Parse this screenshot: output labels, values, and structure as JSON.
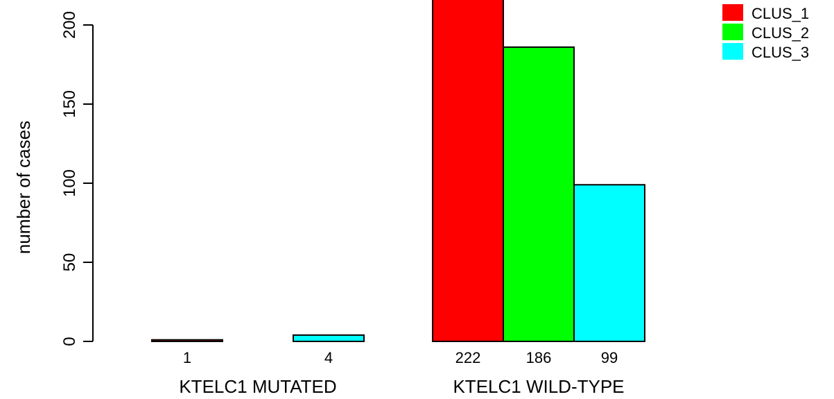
{
  "chart_data": {
    "type": "bar",
    "title": "",
    "xlabel": "",
    "ylabel": "number of cases",
    "ylim": [
      0,
      222
    ],
    "yticks": [
      0,
      50,
      100,
      150,
      200
    ],
    "categories": [
      "KTELC1 MUTATED",
      "KTELC1 WILD-TYPE"
    ],
    "series": [
      {
        "name": "CLUS_1",
        "color": "#ff0000",
        "values": [
          1,
          222
        ]
      },
      {
        "name": "CLUS_2",
        "color": "#00ff00",
        "values": [
          0,
          186
        ]
      },
      {
        "name": "CLUS_3",
        "color": "#00ffff",
        "values": [
          4,
          99
        ]
      }
    ],
    "bar_labels": [
      [
        "1",
        "",
        "4"
      ],
      [
        "222",
        "186",
        "99"
      ]
    ],
    "legend": {
      "position": "top-right",
      "entries": [
        "CLUS_1",
        "CLUS_2",
        "CLUS_3"
      ]
    },
    "grid": false
  }
}
